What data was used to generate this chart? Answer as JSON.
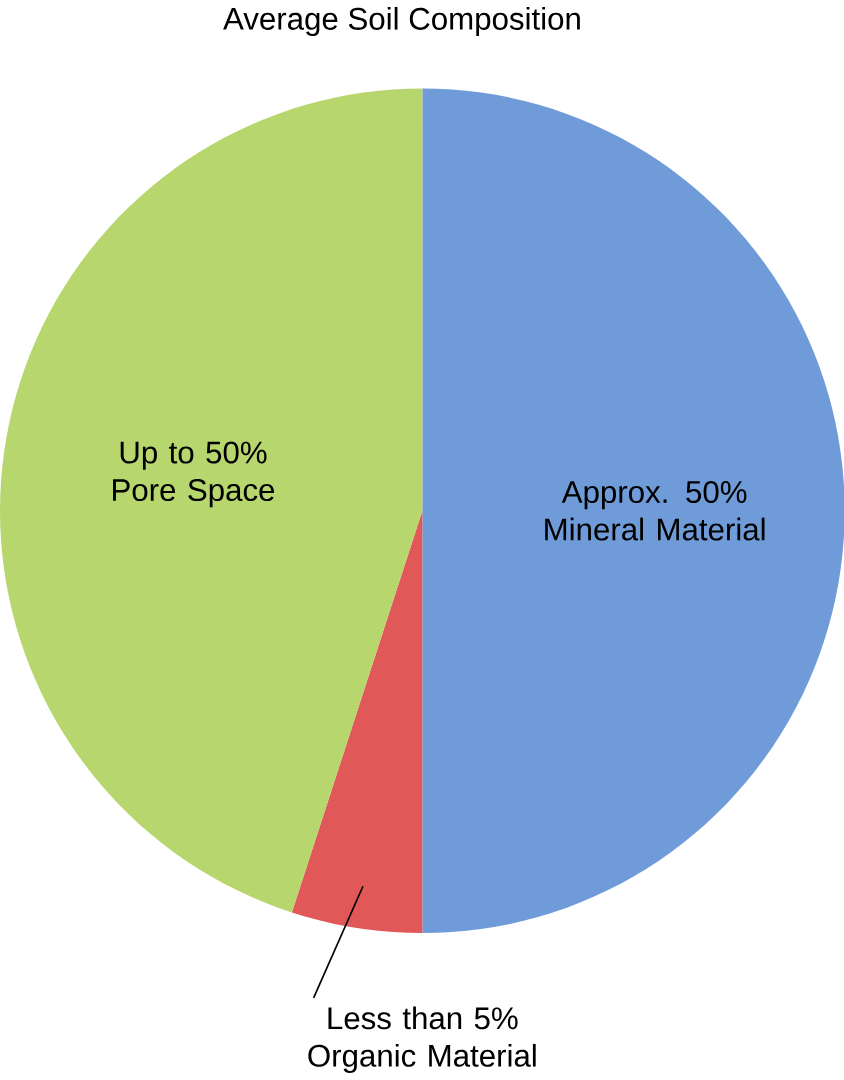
{
  "chart_data": {
    "type": "pie",
    "title": "Average Soil Composition",
    "categories": [
      "Approx. 50% Mineral Material",
      "Less than 5% Organic Material",
      "Up to 50% Pore Space"
    ],
    "values": [
      50,
      5,
      45
    ],
    "colors": [
      "#6f9bd8",
      "#e05858",
      "#b8d66e"
    ]
  }
}
